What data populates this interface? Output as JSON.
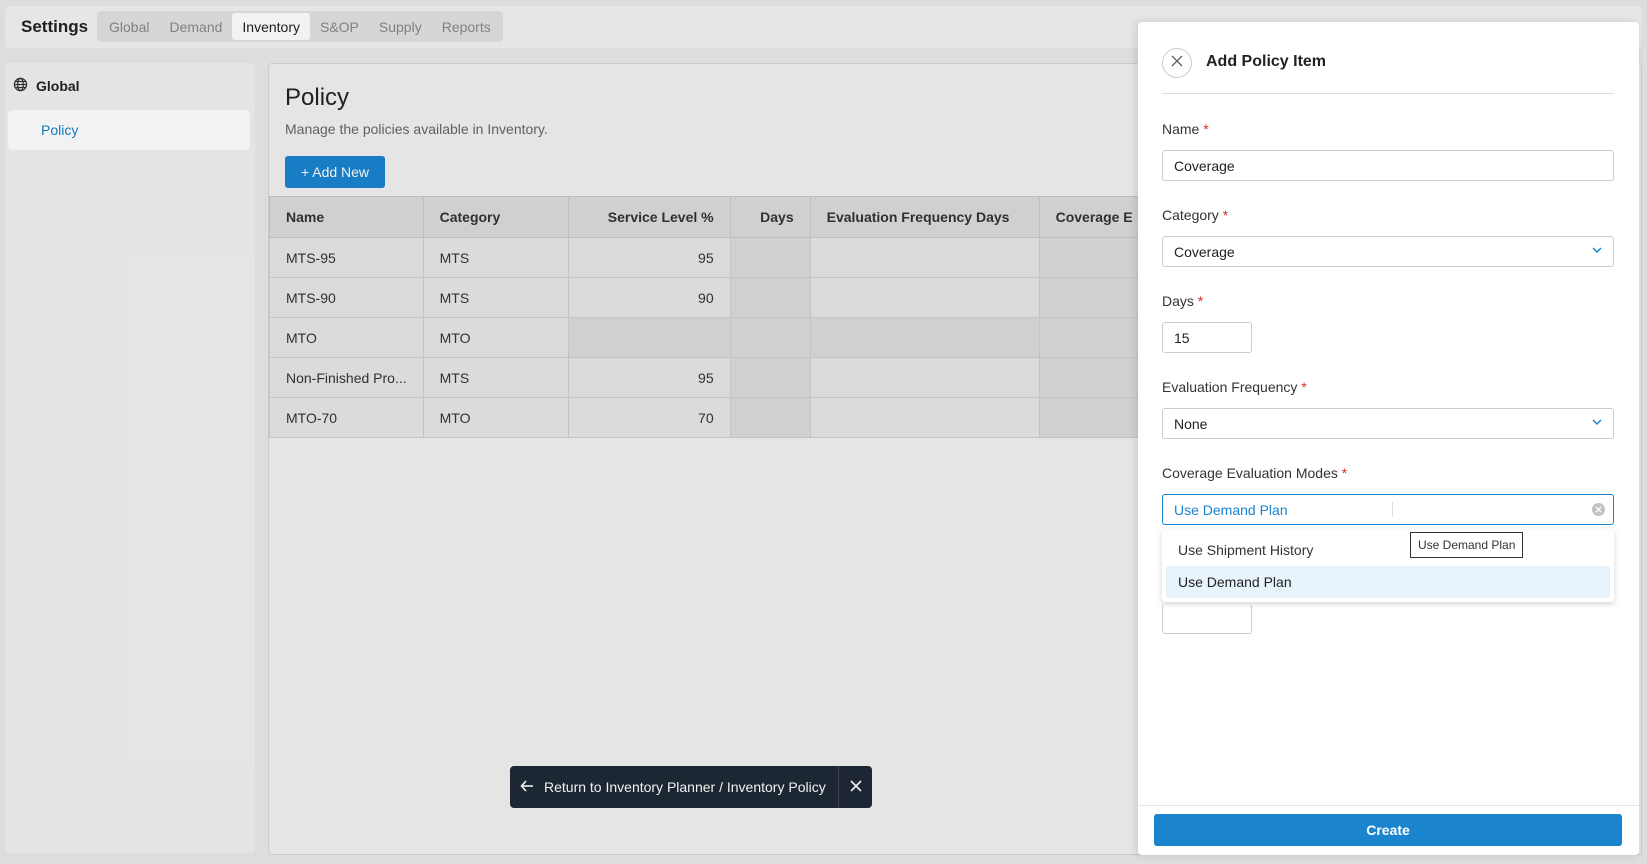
{
  "header": {
    "title": "Settings",
    "tabs": [
      {
        "label": "Global"
      },
      {
        "label": "Demand"
      },
      {
        "label": "Inventory"
      },
      {
        "label": "S&OP"
      },
      {
        "label": "Supply"
      },
      {
        "label": "Reports"
      }
    ]
  },
  "sidebar": {
    "group_label": "Global",
    "items": [
      {
        "label": "Policy"
      }
    ]
  },
  "main": {
    "title": "Policy",
    "subtitle": "Manage the policies available in Inventory.",
    "add_button": "+ Add New",
    "table": {
      "columns": [
        "Name",
        "Category",
        "Service Level %",
        "Days",
        "Evaluation Frequency Days",
        "Coverage E"
      ],
      "rows": [
        {
          "name": "MTS-95",
          "category": "MTS",
          "service_level": "95"
        },
        {
          "name": "MTS-90",
          "category": "MTS",
          "service_level": "90"
        },
        {
          "name": "MTO",
          "category": "MTO",
          "service_level": ""
        },
        {
          "name": "Non-Finished Pro...",
          "category": "MTS",
          "service_level": "95"
        },
        {
          "name": "MTO-70",
          "category": "MTO",
          "service_level": "70"
        }
      ]
    }
  },
  "toast": {
    "label": "Return to Inventory Planner / Inventory Policy"
  },
  "drawer": {
    "title": "Add Policy Item",
    "name_label": "Name",
    "name_value": "Coverage",
    "category_label": "Category",
    "category_value": "Coverage",
    "days_label": "Days",
    "days_value": "15",
    "eval_freq_label": "Evaluation Frequency",
    "eval_freq_value": "None",
    "coverage_modes_label": "Coverage Evaluation Modes",
    "coverage_modes_value": "Use Demand Plan",
    "required_mark": "*",
    "options": [
      {
        "label": "Use Shipment History"
      },
      {
        "label": "Use Demand Plan"
      }
    ],
    "tooltip": "Use Demand Plan",
    "create_button": "Create"
  },
  "colors": {
    "accent": "#1a84cf",
    "required": "#d32f2f",
    "toast_bg": "#1e2a36"
  }
}
